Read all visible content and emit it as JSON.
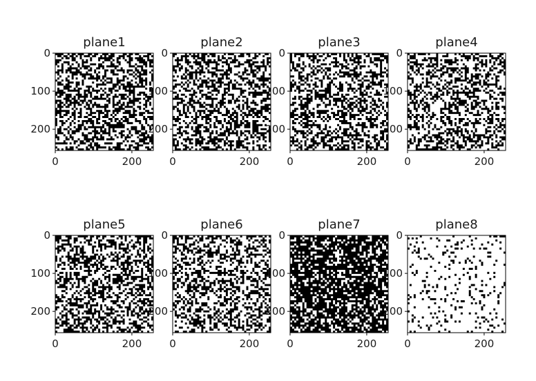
{
  "chart_data": [
    {
      "type": "heatmap",
      "title": "plane1",
      "colormap": "binary (black=0, white=1)",
      "xlim": [
        0,
        256
      ],
      "ylim": [
        256,
        0
      ],
      "xticks": [
        "0",
        "200"
      ],
      "yticks": [
        "0",
        "100",
        "200"
      ],
      "texture": {
        "seed": 11,
        "black_frac": 0.5
      }
    },
    {
      "type": "heatmap",
      "title": "plane2",
      "colormap": "binary (black=0, white=1)",
      "xlim": [
        0,
        256
      ],
      "ylim": [
        256,
        0
      ],
      "xticks": [
        "0",
        "200"
      ],
      "yticks": [
        "0",
        "100",
        "200"
      ],
      "texture": {
        "seed": 23,
        "black_frac": 0.48
      }
    },
    {
      "type": "heatmap",
      "title": "plane3",
      "colormap": "binary (black=0, white=1)",
      "xlim": [
        0,
        256
      ],
      "ylim": [
        256,
        0
      ],
      "xticks": [
        "0",
        "200"
      ],
      "yticks": [
        "0",
        "100",
        "200"
      ],
      "texture": {
        "seed": 37,
        "black_frac": 0.45
      }
    },
    {
      "type": "heatmap",
      "title": "plane4",
      "colormap": "binary (black=0, white=1)",
      "xlim": [
        0,
        256
      ],
      "ylim": [
        256,
        0
      ],
      "xticks": [
        "0",
        "200"
      ],
      "yticks": [
        "0",
        "100",
        "200"
      ],
      "texture": {
        "seed": 41,
        "black_frac": 0.42
      }
    },
    {
      "type": "heatmap",
      "title": "plane5",
      "colormap": "binary (black=0, white=1)",
      "xlim": [
        0,
        256
      ],
      "ylim": [
        256,
        0
      ],
      "xticks": [
        "0",
        "200"
      ],
      "yticks": [
        "0",
        "100",
        "200"
      ],
      "texture": {
        "seed": 53,
        "black_frac": 0.45
      }
    },
    {
      "type": "heatmap",
      "title": "plane6",
      "colormap": "binary (black=0, white=1)",
      "xlim": [
        0,
        256
      ],
      "ylim": [
        256,
        0
      ],
      "xticks": [
        "0",
        "200"
      ],
      "yticks": [
        "0",
        "100",
        "200"
      ],
      "texture": {
        "seed": 67,
        "black_frac": 0.4
      }
    },
    {
      "type": "heatmap",
      "title": "plane7",
      "colormap": "binary (black=0, white=1)",
      "xlim": [
        0,
        256
      ],
      "ylim": [
        256,
        0
      ],
      "xticks": [
        "0",
        "200"
      ],
      "yticks": [
        "0",
        "100",
        "200"
      ],
      "texture": {
        "seed": 71,
        "black_frac": 0.72
      }
    },
    {
      "type": "heatmap",
      "title": "plane8",
      "colormap": "binary (black=0, white=1)",
      "xlim": [
        0,
        256
      ],
      "ylim": [
        256,
        0
      ],
      "xticks": [
        "0",
        "200"
      ],
      "yticks": [
        "0",
        "100",
        "200"
      ],
      "texture": {
        "seed": 83,
        "black_frac": 0.12
      }
    }
  ],
  "colors": {
    "foreground": "#000000",
    "background": "#ffffff",
    "text": "#1a1a1a"
  }
}
